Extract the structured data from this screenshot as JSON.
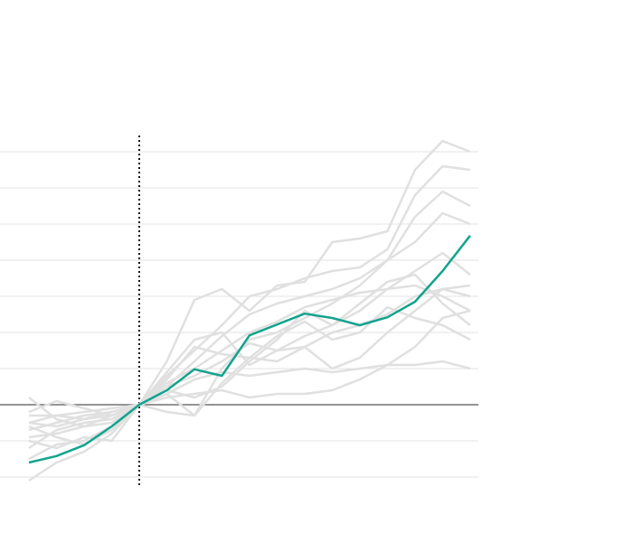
{
  "chart_data": {
    "type": "line",
    "x": [
      -4,
      -3,
      -2,
      -1,
      0,
      1,
      2,
      3,
      4,
      5,
      6,
      7,
      8,
      9,
      10,
      11,
      12
    ],
    "xlim": [
      -5.05,
      12.3
    ],
    "ylim": [
      -2.2,
      7.8
    ],
    "yticks": [
      -2,
      -1,
      0,
      1,
      2,
      3,
      4,
      5,
      6,
      7
    ],
    "grid": true,
    "vline": 0,
    "series": [
      {
        "color": "#e0e0e0",
        "values": [
          -0.2,
          0.1,
          -0.1,
          -0.3,
          0,
          1.2,
          2.9,
          3.2,
          2.6,
          3.3,
          3.4,
          4.5,
          4.6,
          4.8,
          6.5,
          7.3,
          7.0
        ]
      },
      {
        "color": "#e0e0e0",
        "values": [
          -0.7,
          -0.5,
          -0.3,
          -0.2,
          0,
          0.8,
          1.5,
          2.2,
          3.0,
          3.2,
          3.5,
          3.7,
          3.8,
          4.3,
          5.8,
          6.6,
          6.5
        ]
      },
      {
        "color": "#e0e0e0",
        "values": [
          -0.5,
          -0.6,
          -0.4,
          -0.2,
          0,
          0.5,
          1.2,
          1.9,
          2.5,
          2.8,
          3.0,
          3.2,
          3.5,
          4.0,
          4.5,
          5.3,
          5.0
        ]
      },
      {
        "color": "#e0e0e0",
        "values": [
          -2.1,
          -1.6,
          -1.3,
          -0.8,
          0,
          0.3,
          -0.3,
          1.0,
          1.8,
          2.0,
          2.4,
          2.8,
          3.3,
          4.0,
          5.2,
          5.9,
          5.5
        ]
      },
      {
        "color": "#e0e0e0",
        "values": [
          -1.5,
          -1.1,
          -1.0,
          -0.6,
          0,
          0.9,
          1.8,
          2.0,
          1.1,
          1.5,
          1.9,
          2.2,
          2.6,
          3.2,
          3.7,
          4.2,
          3.6
        ]
      },
      {
        "color": "#e0e0e0",
        "values": [
          -1.2,
          -0.7,
          -0.5,
          -0.4,
          0,
          0.6,
          1.0,
          1.5,
          2.0,
          2.3,
          2.7,
          2.9,
          3.1,
          3.2,
          3.3,
          3.0,
          2.6
        ]
      },
      {
        "color": "#e0e0e0",
        "values": [
          0.2,
          -0.4,
          -0.6,
          -0.3,
          0,
          -0.2,
          -0.3,
          0.6,
          1.3,
          1.2,
          1.6,
          1.0,
          1.3,
          2.0,
          2.6,
          3.2,
          3.3
        ]
      },
      {
        "color": "#e0e0e0",
        "values": [
          -0.9,
          -0.8,
          -0.6,
          -0.5,
          0,
          0.3,
          0.7,
          0.9,
          0.8,
          0.9,
          1.0,
          0.9,
          1.0,
          1.1,
          1.1,
          1.2,
          1.0
        ]
      },
      {
        "color": "#e0e0e0",
        "values": [
          -0.5,
          -0.3,
          -0.2,
          -0.1,
          0,
          0.2,
          0.3,
          0.4,
          0.2,
          0.3,
          0.3,
          0.4,
          0.7,
          1.1,
          1.6,
          2.4,
          2.6
        ]
      },
      {
        "color": "#e0e0e0",
        "values": [
          -0.6,
          -0.9,
          -1.1,
          -0.7,
          0,
          0.5,
          0.8,
          1.2,
          1.7,
          1.5,
          1.6,
          2.0,
          2.2,
          2.5,
          3.0,
          3.2,
          3.0
        ]
      },
      {
        "color": "#e0e0e0",
        "values": [
          -1.0,
          -1.2,
          -0.9,
          -1.0,
          0,
          0.7,
          1.6,
          1.4,
          1.3,
          1.9,
          2.3,
          1.8,
          2.0,
          2.7,
          2.4,
          2.2,
          1.8
        ]
      },
      {
        "color": "#e0e0e0",
        "values": [
          -0.3,
          -0.3,
          -0.4,
          -0.3,
          0,
          0.4,
          0.2,
          0.5,
          1.2,
          1.8,
          2.6,
          2.2,
          2.8,
          3.4,
          3.6,
          2.8,
          2.2
        ]
      },
      {
        "color": "#14a38e",
        "values": [
          -1.6,
          -1.42,
          -1.12,
          -0.6,
          0,
          0.4,
          0.98,
          0.8,
          1.92,
          2.22,
          2.52,
          2.4,
          2.2,
          2.42,
          2.85,
          3.7,
          4.68
        ]
      }
    ]
  }
}
